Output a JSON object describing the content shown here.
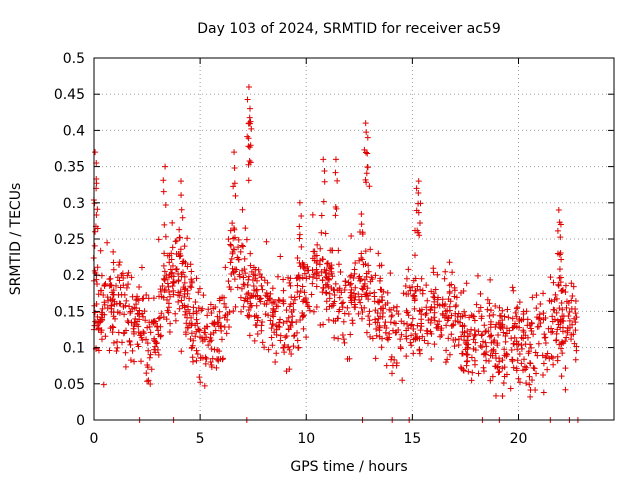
{
  "chart_data": {
    "type": "scatter",
    "title": "Day 103 of 2024, SRMTID for receiver ac59",
    "xlabel": "GPS time / hours",
    "ylabel": "SRMTID / TECUs",
    "xlim": [
      0,
      24.5
    ],
    "ylim": [
      0,
      0.5
    ],
    "x_ticks": [
      0,
      5,
      10,
      15,
      20
    ],
    "x_tick_labels": [
      "0",
      "5",
      "10",
      "15",
      "20"
    ],
    "y_ticks": [
      0,
      0.05,
      0.1,
      0.15,
      0.2,
      0.25,
      0.3,
      0.35,
      0.4,
      0.45,
      0.5
    ],
    "y_tick_labels": [
      "0",
      "0.05",
      "0.1",
      "0.15",
      "0.2",
      "0.25",
      "0.3",
      "0.35",
      "0.4",
      "0.45",
      "0.5"
    ],
    "grid": true,
    "marker": "plus",
    "color": "#e00000",
    "series": [
      {
        "name": "SRMTID",
        "trend": [
          [
            0,
            0.13
          ],
          [
            0.5,
            0.15
          ],
          [
            1,
            0.16
          ],
          [
            1.5,
            0.15
          ],
          [
            2,
            0.14
          ],
          [
            2.5,
            0.1
          ],
          [
            3,
            0.13
          ],
          [
            3.5,
            0.2
          ],
          [
            4,
            0.2
          ],
          [
            4.5,
            0.15
          ],
          [
            5,
            0.12
          ],
          [
            5.5,
            0.11
          ],
          [
            6,
            0.1
          ],
          [
            6.5,
            0.22
          ],
          [
            7,
            0.2
          ],
          [
            7.5,
            0.16
          ],
          [
            8,
            0.15
          ],
          [
            8.5,
            0.15
          ],
          [
            9,
            0.13
          ],
          [
            9.5,
            0.16
          ],
          [
            10,
            0.17
          ],
          [
            10.5,
            0.2
          ],
          [
            11,
            0.2
          ],
          [
            11.5,
            0.17
          ],
          [
            12,
            0.15
          ],
          [
            12.5,
            0.2
          ],
          [
            13,
            0.17
          ],
          [
            13.5,
            0.15
          ],
          [
            14,
            0.12
          ],
          [
            14.5,
            0.14
          ],
          [
            15,
            0.15
          ],
          [
            15.5,
            0.13
          ],
          [
            16,
            0.14
          ],
          [
            16.5,
            0.15
          ],
          [
            17,
            0.13
          ],
          [
            17.5,
            0.11
          ],
          [
            18,
            0.12
          ],
          [
            18.5,
            0.12
          ],
          [
            19,
            0.1
          ],
          [
            19.5,
            0.13
          ],
          [
            20,
            0.1
          ],
          [
            20.5,
            0.09
          ],
          [
            21,
            0.11
          ],
          [
            21.5,
            0.12
          ],
          [
            22,
            0.14
          ],
          [
            22.5,
            0.14
          ],
          [
            22.75,
            0.13
          ]
        ],
        "peaks": [
          [
            0.05,
            0.37
          ],
          [
            0.1,
            0.32
          ],
          [
            0.05,
            0.26
          ],
          [
            3.35,
            0.35
          ],
          [
            4.1,
            0.33
          ],
          [
            6.6,
            0.37
          ],
          [
            7.3,
            0.46
          ],
          [
            7.35,
            0.43
          ],
          [
            7.3,
            0.41
          ],
          [
            9.7,
            0.3
          ],
          [
            10.8,
            0.36
          ],
          [
            11.4,
            0.36
          ],
          [
            12.8,
            0.41
          ],
          [
            12.9,
            0.39
          ],
          [
            15.3,
            0.33
          ],
          [
            15.2,
            0.32
          ],
          [
            21.9,
            0.29
          ],
          [
            22.0,
            0.27
          ]
        ],
        "zero_points": [
          2.15,
          3.75,
          7.2,
          12.65,
          14.05,
          14.85,
          18.3,
          19.1,
          21.5,
          22.4,
          22.8
        ]
      }
    ]
  }
}
